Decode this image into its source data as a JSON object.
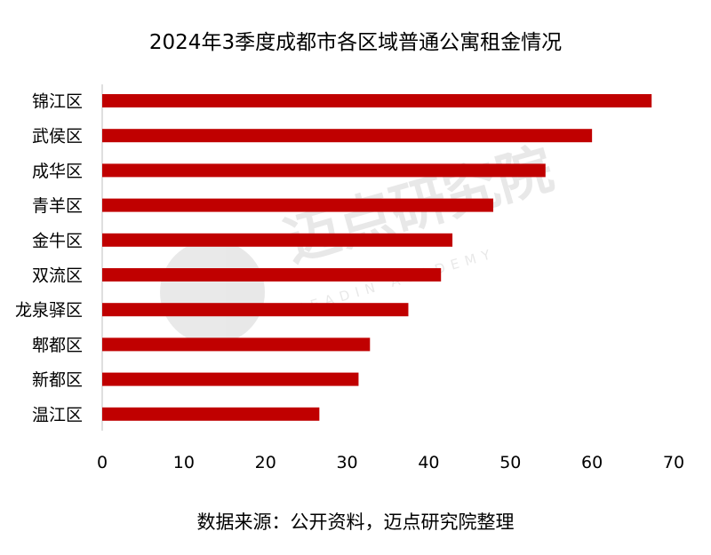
{
  "chart_data": {
    "type": "bar",
    "orientation": "horizontal",
    "title": "2024年3季度成都市各区域普通公寓租金情况",
    "categories": [
      "锦江区",
      "武侯区",
      "成华区",
      "青羊区",
      "金牛区",
      "双流区",
      "龙泉驿区",
      "郫都区",
      "新都区",
      "温江区"
    ],
    "values": [
      67.3,
      60.0,
      54.3,
      47.9,
      42.9,
      41.5,
      37.5,
      32.8,
      31.4,
      26.6
    ],
    "xlim": [
      0,
      70
    ],
    "x_ticks": [
      0,
      10,
      20,
      30,
      40,
      50,
      60,
      70
    ],
    "bar_color": "#c00000",
    "grid": false,
    "legend": "none"
  },
  "source_note": "数据来源：公开资料，迈点研究院整理",
  "watermark": {
    "text_cn": "迈点研究院",
    "text_en": "MEADIN ACADEMY"
  }
}
